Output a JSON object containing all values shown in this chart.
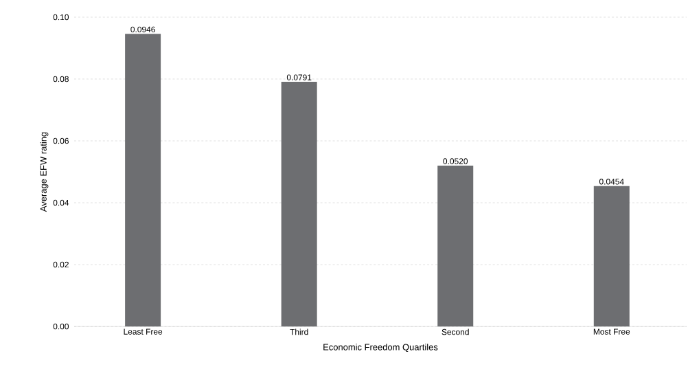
{
  "chart_data": {
    "type": "bar",
    "xlabel": "Economic Freedom Quartiles",
    "ylabel": "Average EFW rating",
    "categories": [
      "Least Free",
      "Third",
      "Second",
      "Most Free"
    ],
    "values": [
      0.0946,
      0.0791,
      0.052,
      0.0454
    ],
    "value_labels": [
      "0.0946",
      "0.0791",
      "0.0520",
      "0.0454"
    ],
    "color": "#6d6e71",
    "ylim": [
      0,
      0.1
    ],
    "yticks": [
      {
        "value": 0,
        "label": "0.00"
      },
      {
        "value": 0.02,
        "label": "0.02"
      },
      {
        "value": 0.04,
        "label": "0.04"
      },
      {
        "value": 0.06,
        "label": "0.06"
      },
      {
        "value": 0.08,
        "label": "0.08"
      },
      {
        "value": 0.1,
        "label": "0.10"
      }
    ],
    "grid": "y"
  }
}
